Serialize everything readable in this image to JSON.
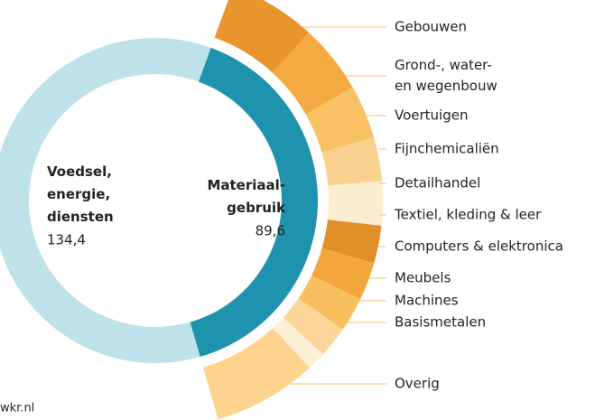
{
  "chart_data": {
    "type": "donut",
    "categories": [
      "Voedsel,\nenergie,\ndiensten",
      "Materiaal-\ngebruik"
    ],
    "values": [
      134.4,
      89.6
    ],
    "value_labels": [
      "134,4",
      "89,6"
    ],
    "colors": [
      "#bfe1e9",
      "#1f93ad"
    ],
    "breakdown": {
      "categories": [
        "Gebouwen",
        "Grond-, water-\nen wegenbouw",
        "Voertuigen",
        "Fijnchemicaliën",
        "Detailhandel",
        "Textiel, kleding & leer",
        "Computers & elektronica",
        "Meubels",
        "Machines",
        "Basismetalen",
        "Overig"
      ],
      "values": [
        14,
        11,
        8.5,
        7,
        7,
        6,
        6,
        5.5,
        5,
        3,
        16.6
      ],
      "colors": [
        "#e8952b",
        "#f3aa42",
        "#f8c163",
        "#fbd18e",
        "#fdedd0",
        "#e0902a",
        "#f2a63d",
        "#f8bf5f",
        "#fcd598",
        "#fdeed6",
        "#fdd38d"
      ]
    },
    "source": "wkr.nl"
  }
}
